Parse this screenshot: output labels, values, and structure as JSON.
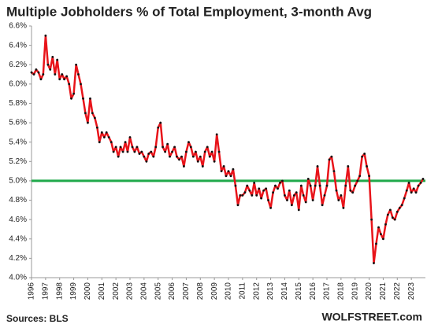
{
  "chart_data": {
    "type": "line",
    "title": "Multiple Jobholders % of Total Employment, 3-month Avg",
    "x": [
      1996,
      1996.17,
      1996.33,
      1996.5,
      1996.67,
      1996.83,
      1997,
      1997.17,
      1997.33,
      1997.5,
      1997.67,
      1997.83,
      1998,
      1998.17,
      1998.33,
      1998.5,
      1998.67,
      1998.83,
      1999,
      1999.17,
      1999.33,
      1999.5,
      1999.67,
      1999.83,
      2000,
      2000.17,
      2000.33,
      2000.5,
      2000.67,
      2000.83,
      2001,
      2001.17,
      2001.33,
      2001.5,
      2001.67,
      2001.83,
      2002,
      2002.17,
      2002.33,
      2002.5,
      2002.67,
      2002.83,
      2003,
      2003.17,
      2003.33,
      2003.5,
      2003.67,
      2003.83,
      2004,
      2004.17,
      2004.33,
      2004.5,
      2004.67,
      2004.83,
      2005,
      2005.17,
      2005.33,
      2005.5,
      2005.67,
      2005.83,
      2006,
      2006.17,
      2006.33,
      2006.5,
      2006.67,
      2006.83,
      2007,
      2007.17,
      2007.33,
      2007.5,
      2007.67,
      2007.83,
      2008,
      2008.17,
      2008.33,
      2008.5,
      2008.67,
      2008.83,
      2009,
      2009.17,
      2009.33,
      2009.5,
      2009.67,
      2009.83,
      2010,
      2010.17,
      2010.33,
      2010.5,
      2010.67,
      2010.83,
      2011,
      2011.17,
      2011.33,
      2011.5,
      2011.67,
      2011.83,
      2012,
      2012.17,
      2012.33,
      2012.5,
      2012.67,
      2012.83,
      2013,
      2013.17,
      2013.33,
      2013.5,
      2013.67,
      2013.83,
      2014,
      2014.17,
      2014.33,
      2014.5,
      2014.67,
      2014.83,
      2015,
      2015.17,
      2015.33,
      2015.5,
      2015.67,
      2015.83,
      2016,
      2016.17,
      2016.33,
      2016.5,
      2016.67,
      2016.83,
      2017,
      2017.17,
      2017.33,
      2017.5,
      2017.67,
      2017.83,
      2018,
      2018.17,
      2018.33,
      2018.5,
      2018.67,
      2018.83,
      2019,
      2019.17,
      2019.33,
      2019.5,
      2019.67,
      2019.83,
      2020,
      2020.17,
      2020.33,
      2020.5,
      2020.67,
      2020.83,
      2021,
      2021.17,
      2021.33,
      2021.5,
      2021.67,
      2021.83,
      2022,
      2022.17,
      2022.33,
      2022.5,
      2022.67,
      2022.83,
      2023,
      2023.17,
      2023.33,
      2023.5,
      2023.67,
      2023.83
    ],
    "series": [
      {
        "color": "#e8141a",
        "marker_color": "#111111",
        "values": [
          6.12,
          6.1,
          6.15,
          6.12,
          6.05,
          6.1,
          6.5,
          6.2,
          6.15,
          6.28,
          6.1,
          6.25,
          6.05,
          6.1,
          6.05,
          6.08,
          6.0,
          5.85,
          5.9,
          6.2,
          6.1,
          6.0,
          5.85,
          5.7,
          5.6,
          5.85,
          5.7,
          5.65,
          5.55,
          5.4,
          5.5,
          5.45,
          5.5,
          5.45,
          5.4,
          5.3,
          5.35,
          5.25,
          5.35,
          5.3,
          5.4,
          5.3,
          5.45,
          5.35,
          5.3,
          5.35,
          5.28,
          5.3,
          5.25,
          5.2,
          5.28,
          5.3,
          5.25,
          5.35,
          5.55,
          5.6,
          5.35,
          5.3,
          5.38,
          5.25,
          5.3,
          5.35,
          5.25,
          5.22,
          5.25,
          5.15,
          5.3,
          5.4,
          5.35,
          5.25,
          5.3,
          5.2,
          5.25,
          5.15,
          5.3,
          5.35,
          5.25,
          5.3,
          5.2,
          5.48,
          5.3,
          5.1,
          5.15,
          5.05,
          5.1,
          5.05,
          5.12,
          4.95,
          4.75,
          4.85,
          4.85,
          4.88,
          4.95,
          4.9,
          4.85,
          4.98,
          4.85,
          4.92,
          4.82,
          4.9,
          4.92,
          4.8,
          4.72,
          4.88,
          4.95,
          4.92,
          4.98,
          5.0,
          4.85,
          4.8,
          4.9,
          4.75,
          4.85,
          4.88,
          4.7,
          4.95,
          4.85,
          4.78,
          5.02,
          4.95,
          4.8,
          4.95,
          5.15,
          4.95,
          4.75,
          4.85,
          4.95,
          5.22,
          5.25,
          5.1,
          4.9,
          4.8,
          4.85,
          4.72,
          4.95,
          5.15,
          4.9,
          4.88,
          4.95,
          5.0,
          5.05,
          5.25,
          5.28,
          5.15,
          5.05,
          4.6,
          4.15,
          4.35,
          4.52,
          4.45,
          4.4,
          4.55,
          4.65,
          4.7,
          4.62,
          4.6,
          4.68,
          4.72,
          4.75,
          4.82,
          4.9,
          4.98,
          4.88,
          4.92,
          4.88,
          4.95,
          4.98,
          5.02
        ]
      }
    ],
    "xlim": [
      1996,
      2024
    ],
    "xticks": [
      1996,
      1997,
      1998,
      1999,
      2000,
      2001,
      2002,
      2003,
      2004,
      2005,
      2006,
      2007,
      2008,
      2009,
      2010,
      2011,
      2012,
      2013,
      2014,
      2015,
      2016,
      2017,
      2018,
      2019,
      2020,
      2021,
      2022,
      2023
    ],
    "ylim": [
      4.0,
      6.6
    ],
    "yticks": [
      {
        "value": 4.0,
        "label": "4.0%"
      },
      {
        "value": 4.2,
        "label": "4.2%"
      },
      {
        "value": 4.4,
        "label": "4.4%"
      },
      {
        "value": 4.6,
        "label": "4.6%"
      },
      {
        "value": 4.8,
        "label": "4.8%"
      },
      {
        "value": 5.0,
        "label": "5.0%"
      },
      {
        "value": 5.2,
        "label": "5.2%"
      },
      {
        "value": 5.4,
        "label": "5.4%"
      },
      {
        "value": 5.6,
        "label": "5.6%"
      },
      {
        "value": 5.8,
        "label": "5.8%"
      },
      {
        "value": 6.0,
        "label": "6.0%"
      },
      {
        "value": 6.2,
        "label": "6.2%"
      },
      {
        "value": 6.4,
        "label": "6.4%"
      },
      {
        "value": 6.6,
        "label": "6.6%"
      }
    ],
    "reference_line": {
      "value": 5.0,
      "color": "#1fa94a"
    },
    "source": "Sources: BLS",
    "watermark": "WOLFSTREET.com"
  }
}
